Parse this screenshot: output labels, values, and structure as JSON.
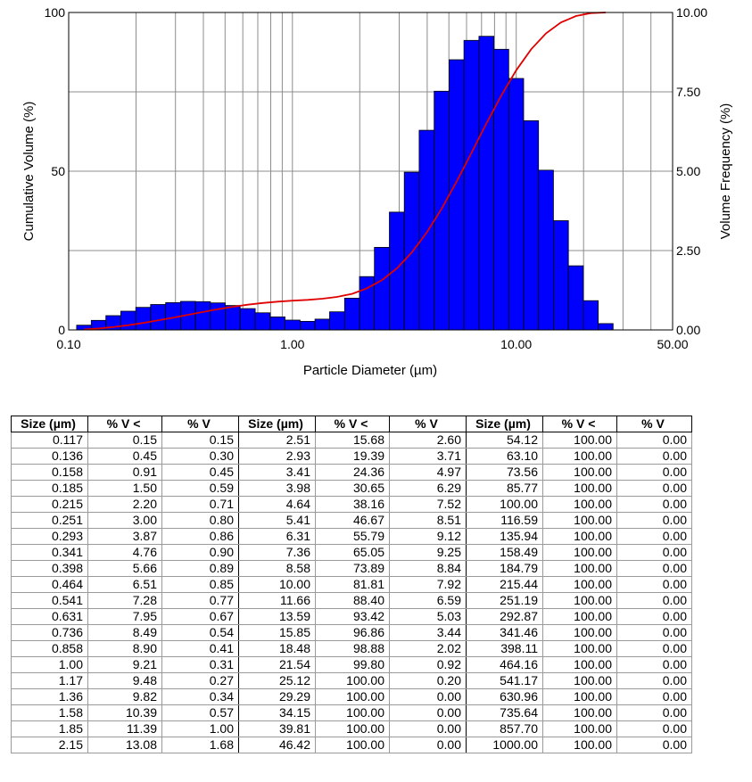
{
  "chart_data": {
    "type": "bar",
    "xlabel": "Particle Diameter (µm)",
    "ylabel": "Cumulative Volume (%)",
    "y2label": "Volume Frequency (%)",
    "x_scale": "log",
    "xlim": [
      0.1,
      50.0
    ],
    "x_ticks": [
      "0.10",
      "1.00",
      "10.00",
      "50.00"
    ],
    "ylim": [
      0,
      100
    ],
    "y_ticks": [
      "0",
      "50",
      "100"
    ],
    "y2lim": [
      0,
      10.0
    ],
    "y2_ticks": [
      "0.00",
      "2.50",
      "5.00",
      "7.50",
      "10.00"
    ],
    "grid": true,
    "bar_color": "#0000ff",
    "line_color": "#e00000",
    "series": [
      {
        "x": [
          0.117,
          0.136,
          0.158,
          0.185,
          0.215,
          0.251,
          0.293,
          0.341,
          0.398,
          0.464,
          0.541,
          0.631,
          0.736,
          0.858,
          1.0,
          1.17,
          1.36,
          1.58,
          1.85,
          2.15,
          2.51,
          2.93,
          3.41,
          3.98,
          4.64,
          5.41,
          6.31,
          7.36,
          8.58,
          10.0,
          11.66,
          13.59,
          15.85,
          18.48,
          21.54,
          25.12
        ],
        "values": [
          0.15,
          0.3,
          0.45,
          0.59,
          0.71,
          0.8,
          0.86,
          0.9,
          0.89,
          0.85,
          0.77,
          0.67,
          0.54,
          0.41,
          0.31,
          0.27,
          0.34,
          0.57,
          1.0,
          1.68,
          2.6,
          3.71,
          4.97,
          6.29,
          7.52,
          8.51,
          9.12,
          9.25,
          8.84,
          7.92,
          6.59,
          5.03,
          3.44,
          2.02,
          0.92,
          0.2
        ]
      },
      {
        "x": [
          0.117,
          0.136,
          0.158,
          0.185,
          0.215,
          0.251,
          0.293,
          0.341,
          0.398,
          0.464,
          0.541,
          0.631,
          0.736,
          0.858,
          1.0,
          1.17,
          1.36,
          1.58,
          1.85,
          2.15,
          2.51,
          2.93,
          3.41,
          3.98,
          4.64,
          5.41,
          6.31,
          7.36,
          8.58,
          10.0,
          11.66,
          13.59,
          15.85,
          18.48,
          21.54,
          25.12
        ],
        "values": [
          0.15,
          0.45,
          0.91,
          1.5,
          2.2,
          3.0,
          3.87,
          4.76,
          5.66,
          6.51,
          7.28,
          7.95,
          8.49,
          8.9,
          9.21,
          9.48,
          9.82,
          10.39,
          11.39,
          13.08,
          15.68,
          19.39,
          24.36,
          30.65,
          38.16,
          46.67,
          55.79,
          65.05,
          73.89,
          81.81,
          88.4,
          93.42,
          96.86,
          98.88,
          99.8,
          100.0
        ]
      }
    ]
  },
  "table": {
    "headers": [
      "Size (µm)",
      "% V <",
      "% V",
      "Size (µm)",
      "% V <",
      "% V",
      "Size (µm)",
      "% V <",
      "% V"
    ],
    "rows": [
      [
        "0.117",
        "0.15",
        "0.15",
        "2.51",
        "15.68",
        "2.60",
        "54.12",
        "100.00",
        "0.00"
      ],
      [
        "0.136",
        "0.45",
        "0.30",
        "2.93",
        "19.39",
        "3.71",
        "63.10",
        "100.00",
        "0.00"
      ],
      [
        "0.158",
        "0.91",
        "0.45",
        "3.41",
        "24.36",
        "4.97",
        "73.56",
        "100.00",
        "0.00"
      ],
      [
        "0.185",
        "1.50",
        "0.59",
        "3.98",
        "30.65",
        "6.29",
        "85.77",
        "100.00",
        "0.00"
      ],
      [
        "0.215",
        "2.20",
        "0.71",
        "4.64",
        "38.16",
        "7.52",
        "100.00",
        "100.00",
        "0.00"
      ],
      [
        "0.251",
        "3.00",
        "0.80",
        "5.41",
        "46.67",
        "8.51",
        "116.59",
        "100.00",
        "0.00"
      ],
      [
        "0.293",
        "3.87",
        "0.86",
        "6.31",
        "55.79",
        "9.12",
        "135.94",
        "100.00",
        "0.00"
      ],
      [
        "0.341",
        "4.76",
        "0.90",
        "7.36",
        "65.05",
        "9.25",
        "158.49",
        "100.00",
        "0.00"
      ],
      [
        "0.398",
        "5.66",
        "0.89",
        "8.58",
        "73.89",
        "8.84",
        "184.79",
        "100.00",
        "0.00"
      ],
      [
        "0.464",
        "6.51",
        "0.85",
        "10.00",
        "81.81",
        "7.92",
        "215.44",
        "100.00",
        "0.00"
      ],
      [
        "0.541",
        "7.28",
        "0.77",
        "11.66",
        "88.40",
        "6.59",
        "251.19",
        "100.00",
        "0.00"
      ],
      [
        "0.631",
        "7.95",
        "0.67",
        "13.59",
        "93.42",
        "5.03",
        "292.87",
        "100.00",
        "0.00"
      ],
      [
        "0.736",
        "8.49",
        "0.54",
        "15.85",
        "96.86",
        "3.44",
        "341.46",
        "100.00",
        "0.00"
      ],
      [
        "0.858",
        "8.90",
        "0.41",
        "18.48",
        "98.88",
        "2.02",
        "398.11",
        "100.00",
        "0.00"
      ],
      [
        "1.00",
        "9.21",
        "0.31",
        "21.54",
        "99.80",
        "0.92",
        "464.16",
        "100.00",
        "0.00"
      ],
      [
        "1.17",
        "9.48",
        "0.27",
        "25.12",
        "100.00",
        "0.20",
        "541.17",
        "100.00",
        "0.00"
      ],
      [
        "1.36",
        "9.82",
        "0.34",
        "29.29",
        "100.00",
        "0.00",
        "630.96",
        "100.00",
        "0.00"
      ],
      [
        "1.58",
        "10.39",
        "0.57",
        "34.15",
        "100.00",
        "0.00",
        "735.64",
        "100.00",
        "0.00"
      ],
      [
        "1.85",
        "11.39",
        "1.00",
        "39.81",
        "100.00",
        "0.00",
        "857.70",
        "100.00",
        "0.00"
      ],
      [
        "2.15",
        "13.08",
        "1.68",
        "46.42",
        "100.00",
        "0.00",
        "1000.00",
        "100.00",
        "0.00"
      ]
    ]
  }
}
